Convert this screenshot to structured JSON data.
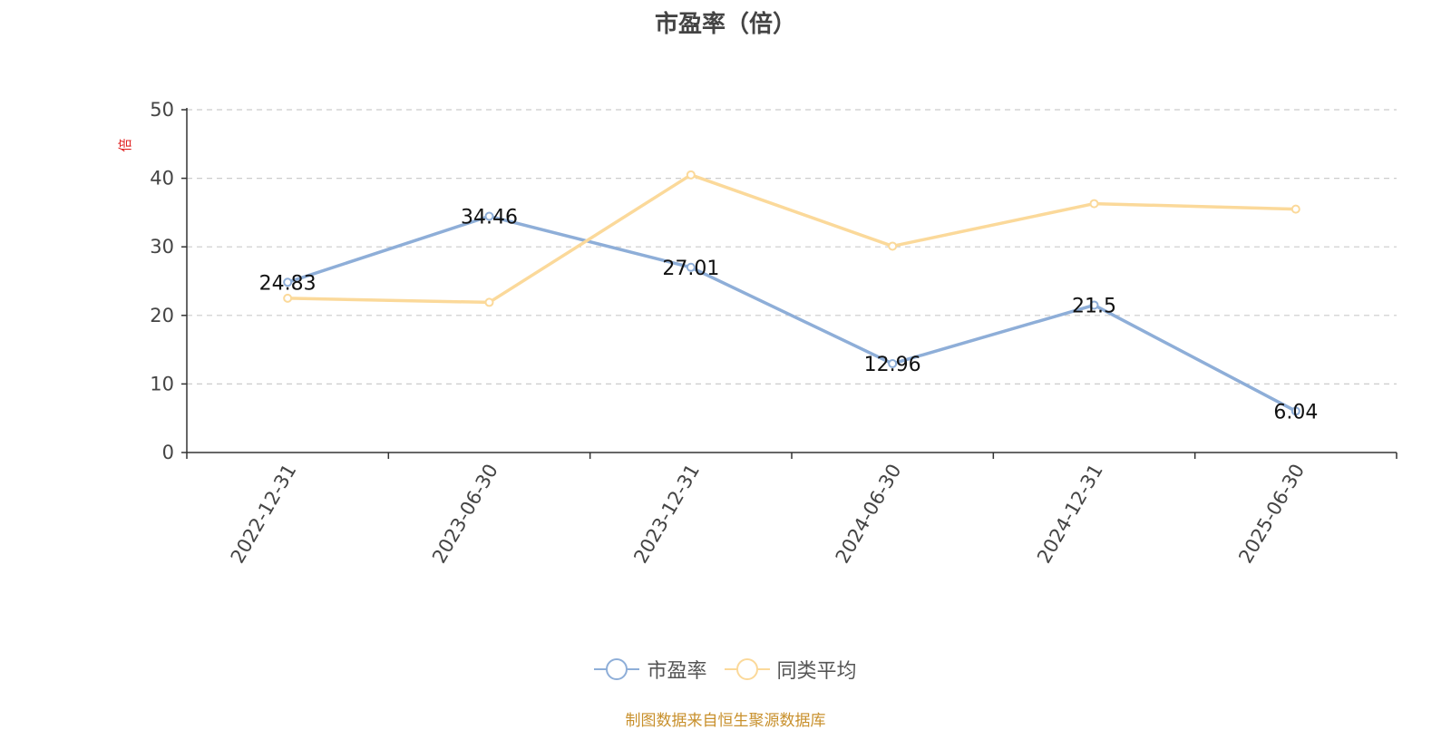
{
  "chart_data": {
    "type": "line",
    "title": "市盈率（倍）",
    "ylabel": "倍",
    "categories": [
      "2022-12-31",
      "2023-06-30",
      "2023-12-31",
      "2024-06-30",
      "2024-12-31",
      "2025-06-30"
    ],
    "ylim": [
      0,
      50
    ],
    "yticks": [
      0,
      10,
      20,
      30,
      40,
      50
    ],
    "grid": true,
    "legend_position": "bottom",
    "series": [
      {
        "name": "市盈率",
        "color": "#8eaed8",
        "values": [
          24.83,
          34.46,
          27.01,
          12.96,
          21.5,
          6.04
        ],
        "labels": [
          "24.83",
          "34.46",
          "27.01",
          "12.96",
          "21.5",
          "6.04"
        ]
      },
      {
        "name": "同类平均",
        "color": "#fbd99a",
        "values": [
          22.5,
          21.9,
          40.5,
          30.1,
          36.3,
          35.5
        ]
      }
    ]
  },
  "source_note": "制图数据来自恒生聚源数据库"
}
